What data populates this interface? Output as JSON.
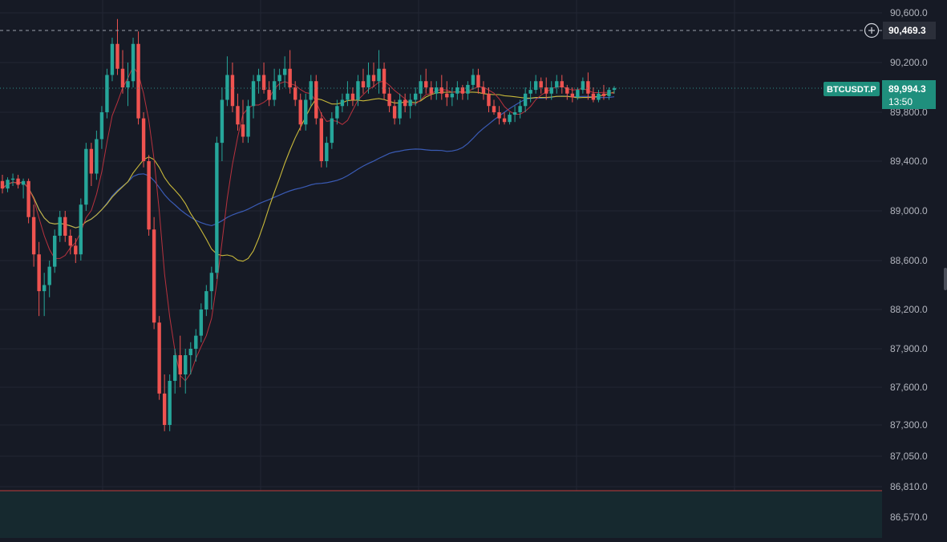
{
  "chart_data": {
    "type": "candlestick",
    "symbol": "BTCUSDT.P",
    "last_price": 89994.3,
    "last_price_label": "89,994.3",
    "countdown": "13:50",
    "crosshair_price": 90469.3,
    "crosshair_label": "90,469.3",
    "support_level": 86790,
    "y_ticks": [
      {
        "label": "90,600.0",
        "value": 90600
      },
      {
        "label": "90,200.0",
        "value": 90200
      },
      {
        "label": "89,800.0",
        "value": 89800
      },
      {
        "label": "89,400.0",
        "value": 89400
      },
      {
        "label": "89,000.0",
        "value": 89000
      },
      {
        "label": "88,600.0",
        "value": 88600
      },
      {
        "label": "88,200.0",
        "value": 88200
      },
      {
        "label": "87,900.0",
        "value": 87900
      },
      {
        "label": "87,600.0",
        "value": 87600
      },
      {
        "label": "87,300.0",
        "value": 87300
      },
      {
        "label": "87,050.0",
        "value": 87050
      },
      {
        "label": "86,810.0",
        "value": 86810
      },
      {
        "label": "86,570.0",
        "value": 86570
      }
    ],
    "candles": [
      [
        89240,
        89290,
        89140,
        89180
      ],
      [
        89180,
        89270,
        89150,
        89250
      ],
      [
        89250,
        89300,
        89200,
        89260
      ],
      [
        89260,
        89290,
        89180,
        89210
      ],
      [
        89210,
        89260,
        89100,
        89240
      ],
      [
        89240,
        89260,
        88900,
        88950
      ],
      [
        88950,
        89050,
        88550,
        88650
      ],
      [
        88650,
        88750,
        88150,
        88350
      ],
      [
        88350,
        88500,
        88150,
        88400
      ],
      [
        88400,
        88600,
        88300,
        88550
      ],
      [
        88550,
        88850,
        88500,
        88800
      ],
      [
        88800,
        89000,
        88750,
        88950
      ],
      [
        88950,
        89000,
        88750,
        88800
      ],
      [
        88800,
        88850,
        88650,
        88720
      ],
      [
        88720,
        88780,
        88580,
        88650
      ],
      [
        88650,
        89100,
        88600,
        89050
      ],
      [
        89050,
        89550,
        89000,
        89500
      ],
      [
        89500,
        89550,
        89200,
        89300
      ],
      [
        89300,
        89650,
        89250,
        89580
      ],
      [
        89580,
        89850,
        89500,
        89800
      ],
      [
        89800,
        90150,
        89750,
        90100
      ],
      [
        90100,
        90400,
        90050,
        90350
      ],
      [
        90350,
        90550,
        90100,
        90150
      ],
      [
        90150,
        90300,
        89950,
        90000
      ],
      [
        90000,
        90200,
        89850,
        90050
      ],
      [
        90050,
        90400,
        90000,
        90350
      ],
      [
        90350,
        90450,
        89700,
        89750
      ],
      [
        89750,
        89800,
        89350,
        89400
      ],
      [
        89400,
        89450,
        88800,
        88850
      ],
      [
        88850,
        88950,
        88050,
        88100
      ],
      [
        88100,
        88150,
        87500,
        87550
      ],
      [
        87550,
        87700,
        87250,
        87300
      ],
      [
        87300,
        87700,
        87250,
        87650
      ],
      [
        87650,
        87900,
        87550,
        87850
      ],
      [
        87850,
        88000,
        87600,
        87700
      ],
      [
        87700,
        87900,
        87550,
        87850
      ],
      [
        87850,
        87950,
        87700,
        87900
      ],
      [
        87900,
        88050,
        87800,
        88000
      ],
      [
        88000,
        88250,
        87950,
        88200
      ],
      [
        88200,
        88400,
        88150,
        88350
      ],
      [
        88350,
        88550,
        88200,
        88500
      ],
      [
        88500,
        89600,
        88450,
        89550
      ],
      [
        89550,
        90000,
        89400,
        89900
      ],
      [
        89900,
        90250,
        89850,
        90100
      ],
      [
        90100,
        90200,
        89800,
        89850
      ],
      [
        89850,
        89950,
        89650,
        89700
      ],
      [
        89700,
        89900,
        89550,
        89600
      ],
      [
        89600,
        89900,
        89550,
        89850
      ],
      [
        89850,
        90100,
        89750,
        90050
      ],
      [
        90050,
        90150,
        89950,
        90100
      ],
      [
        90100,
        90200,
        89950,
        89980
      ],
      [
        89980,
        90050,
        89850,
        89900
      ],
      [
        89900,
        90150,
        89850,
        90050
      ],
      [
        90050,
        90150,
        89980,
        90100
      ],
      [
        90100,
        90250,
        90000,
        90150
      ],
      [
        90150,
        90300,
        89950,
        90000
      ],
      [
        90000,
        90050,
        89850,
        89900
      ],
      [
        89900,
        89950,
        89650,
        89700
      ],
      [
        89700,
        89950,
        89650,
        89900
      ],
      [
        89900,
        90100,
        89850,
        90050
      ],
      [
        90050,
        90100,
        89700,
        89750
      ],
      [
        89750,
        89800,
        89350,
        89400
      ],
      [
        89400,
        89600,
        89350,
        89550
      ],
      [
        89550,
        89800,
        89500,
        89750
      ],
      [
        89750,
        89900,
        89700,
        89850
      ],
      [
        89850,
        89950,
        89800,
        89900
      ],
      [
        89900,
        90050,
        89850,
        89950
      ],
      [
        89950,
        90000,
        89850,
        89900
      ],
      [
        89900,
        90100,
        89850,
        90050
      ],
      [
        90050,
        90150,
        89950,
        90000
      ],
      [
        90000,
        90200,
        89950,
        90100
      ],
      [
        90100,
        90200,
        90000,
        90050
      ],
      [
        90050,
        90300,
        89950,
        90150
      ],
      [
        90150,
        90200,
        89900,
        89950
      ],
      [
        89950,
        90000,
        89800,
        89850
      ],
      [
        89850,
        89900,
        89700,
        89750
      ],
      [
        89750,
        89950,
        89700,
        89900
      ],
      [
        89900,
        89950,
        89800,
        89850
      ],
      [
        89850,
        89950,
        89750,
        89900
      ],
      [
        89900,
        90000,
        89850,
        89950
      ],
      [
        89950,
        90100,
        89900,
        90050
      ],
      [
        90050,
        90150,
        89950,
        90000
      ],
      [
        90000,
        90050,
        89900,
        89950
      ],
      [
        89950,
        90050,
        89900,
        90000
      ],
      [
        90000,
        90100,
        89900,
        89950
      ],
      [
        89950,
        90050,
        89850,
        89920
      ],
      [
        89920,
        90000,
        89850,
        89950
      ],
      [
        89950,
        90050,
        89900,
        90000
      ],
      [
        90000,
        90020,
        89900,
        89950
      ],
      [
        89950,
        90050,
        89900,
        90020
      ],
      [
        90020,
        90150,
        89980,
        90100
      ],
      [
        90100,
        90150,
        89950,
        90000
      ],
      [
        90000,
        90050,
        89900,
        89950
      ],
      [
        89950,
        90000,
        89800,
        89850
      ],
      [
        89850,
        89900,
        89780,
        89800
      ],
      [
        89800,
        89850,
        89700,
        89750
      ],
      [
        89750,
        89800,
        89700,
        89720
      ],
      [
        89720,
        89800,
        89700,
        89780
      ],
      [
        89780,
        89850,
        89720,
        89800
      ],
      [
        89800,
        89900,
        89750,
        89850
      ],
      [
        89850,
        90000,
        89800,
        89950
      ],
      [
        89950,
        90050,
        89880,
        89980
      ],
      [
        89980,
        90100,
        89950,
        90050
      ],
      [
        90050,
        90080,
        89950,
        90000
      ],
      [
        90000,
        90080,
        89900,
        89950
      ],
      [
        89950,
        90050,
        89900,
        90000
      ],
      [
        90000,
        90100,
        89950,
        90050
      ],
      [
        90050,
        90100,
        89950,
        90000
      ],
      [
        90000,
        90020,
        89900,
        89950
      ],
      [
        89950,
        90000,
        89880,
        89920
      ],
      [
        89920,
        90000,
        89900,
        89980
      ],
      [
        89980,
        90080,
        89950,
        90050
      ],
      [
        90050,
        90120,
        89900,
        89950
      ],
      [
        89950,
        90000,
        89880,
        89900
      ],
      [
        89900,
        89980,
        89880,
        89950
      ],
      [
        89950,
        90020,
        89900,
        89930
      ],
      [
        89930,
        90000,
        89900,
        89980
      ],
      [
        89980,
        90010,
        89950,
        89994.3
      ]
    ],
    "ma_fast_color": "#b8323e",
    "ma_mid_color": "#c9b93a",
    "ma_slow_color": "#3a5bb5",
    "up_color": "#26a69a",
    "down_color": "#ef5350",
    "grid": true
  }
}
